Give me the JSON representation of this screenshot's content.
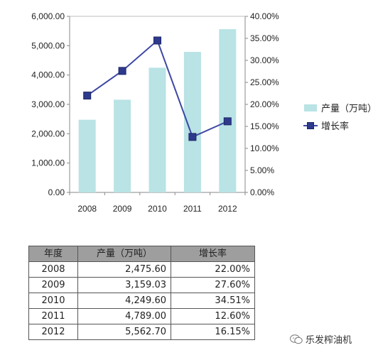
{
  "chart_data": {
    "type": "bar+line",
    "categories": [
      "2008",
      "2009",
      "2010",
      "2011",
      "2012"
    ],
    "series": [
      {
        "name": "产量（万吨）",
        "type": "bar",
        "axis": "left",
        "values": [
          2475.6,
          3159.03,
          4249.6,
          4789.0,
          5562.7
        ],
        "color": "#b9e3e5"
      },
      {
        "name": "增长率",
        "type": "line",
        "axis": "right",
        "values": [
          22.0,
          27.6,
          34.51,
          12.6,
          16.15
        ],
        "color": "#3d47a3",
        "marker": "square"
      }
    ],
    "y_left": {
      "min": 0,
      "max": 6000,
      "step": 1000,
      "tick_labels": [
        "0.00",
        "1,000.00",
        "2,000.00",
        "3,000.00",
        "4,000.00",
        "5,000.00",
        "6,000.00"
      ]
    },
    "y_right": {
      "min": 0,
      "max": 40,
      "step": 5,
      "tick_labels": [
        "0.00%",
        "5.00%",
        "10.00%",
        "15.00%",
        "20.00%",
        "25.00%",
        "30.00%",
        "35.00%",
        "40.00%"
      ]
    },
    "grid": false,
    "legend": "right"
  },
  "table": {
    "headers": [
      "年度",
      "产量（万吨）",
      "增长率"
    ],
    "rows": [
      [
        "2008",
        "2,475.60",
        "22.00%"
      ],
      [
        "2009",
        "3,159.03",
        "27.60%"
      ],
      [
        "2010",
        "4,249.60",
        "34.51%"
      ],
      [
        "2011",
        "4,789.00",
        "12.60%"
      ],
      [
        "2012",
        "5,562.70",
        "16.15%"
      ]
    ]
  },
  "watermark": {
    "text": "乐发榨油机",
    "icon": "wechat-icon"
  }
}
